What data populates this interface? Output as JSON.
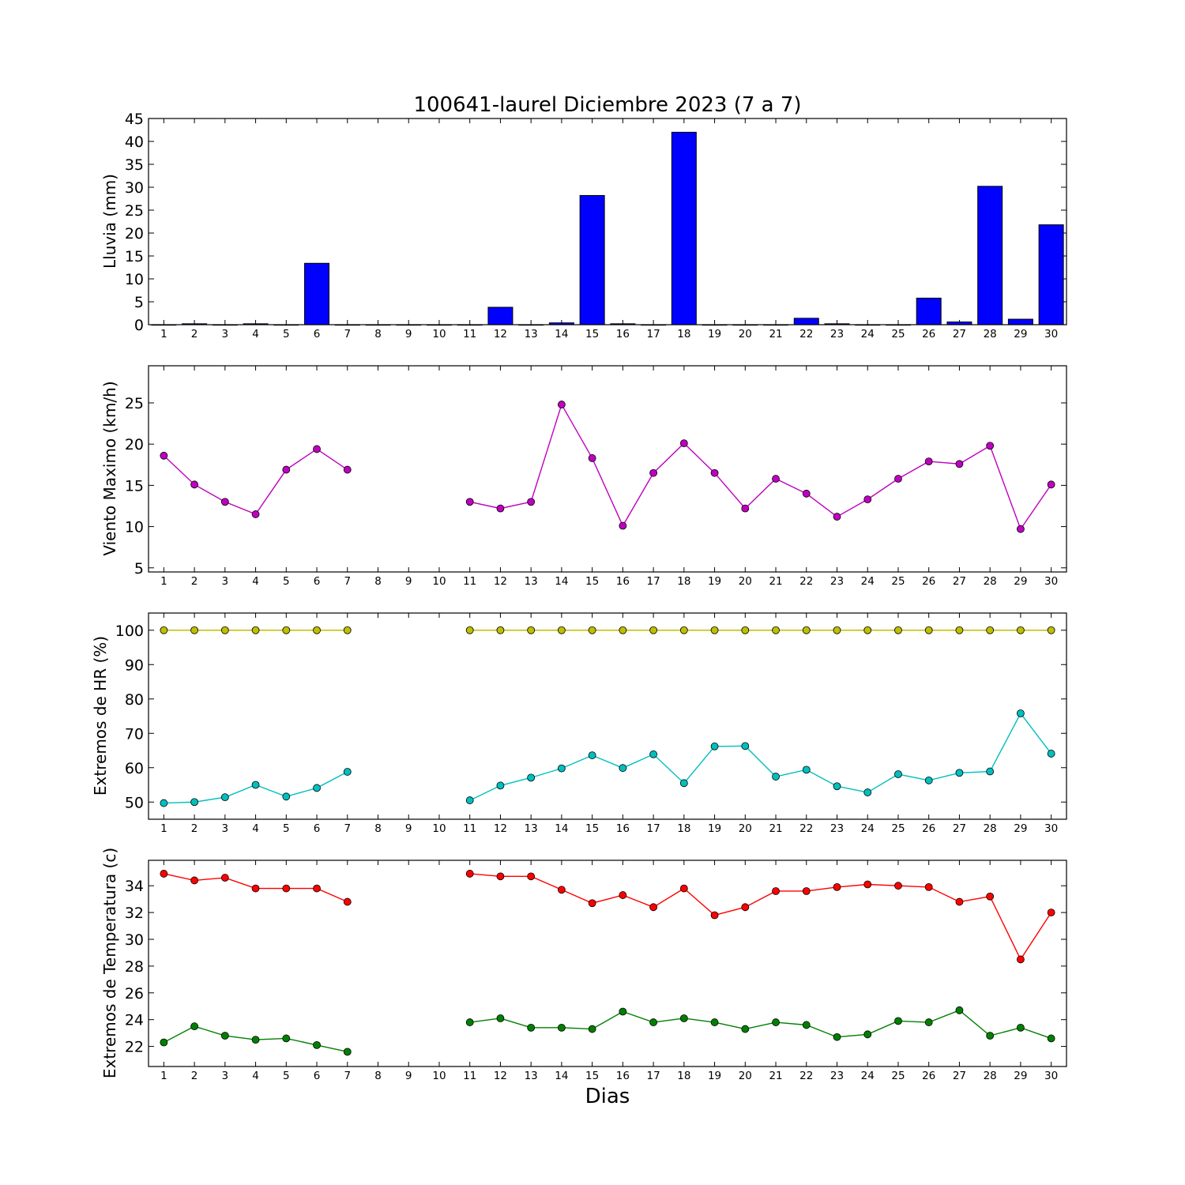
{
  "chart_data": [
    {
      "type": "bar",
      "title": "100641-laurel Diciembre 2023  (7 a 7)",
      "ylabel": "Lluvia (mm)",
      "ylim": [
        0,
        45
      ],
      "yticks": [
        0,
        5,
        10,
        15,
        20,
        25,
        30,
        35,
        40,
        45
      ],
      "categories": [
        1,
        2,
        3,
        4,
        5,
        6,
        7,
        8,
        9,
        10,
        11,
        12,
        13,
        14,
        15,
        16,
        17,
        18,
        19,
        20,
        21,
        22,
        23,
        24,
        25,
        26,
        27,
        28,
        29,
        30
      ],
      "values": [
        0,
        0.2,
        0,
        0.2,
        0,
        13.4,
        0,
        0,
        0,
        0,
        0,
        3.8,
        0,
        0.4,
        28.2,
        0.2,
        0,
        42.0,
        0,
        0,
        0,
        1.4,
        0.2,
        0,
        0,
        5.8,
        0.6,
        30.2,
        1.2,
        21.8
      ],
      "color": "#0000ff"
    },
    {
      "type": "line",
      "ylabel": "Viento Maximo (km/h)",
      "ylim": [
        4.5,
        29.5
      ],
      "yticks": [
        5,
        10,
        15,
        20,
        25
      ],
      "x": [
        1,
        2,
        3,
        4,
        5,
        6,
        7,
        8,
        9,
        10,
        11,
        12,
        13,
        14,
        15,
        16,
        17,
        18,
        19,
        20,
        21,
        22,
        23,
        24,
        25,
        26,
        27,
        28,
        29,
        30
      ],
      "series": [
        {
          "color": "#bf00bf",
          "values": [
            18.6,
            15.1,
            13.0,
            11.5,
            16.9,
            19.4,
            16.9,
            null,
            null,
            null,
            13.0,
            12.2,
            13.0,
            24.8,
            18.3,
            10.1,
            16.5,
            20.1,
            16.5,
            12.2,
            15.8,
            14.0,
            11.2,
            13.3,
            15.8,
            17.9,
            17.6,
            19.8,
            9.7,
            15.1
          ]
        }
      ]
    },
    {
      "type": "line",
      "ylabel": "Extremos de HR (%)",
      "ylim": [
        45,
        105
      ],
      "yticks": [
        50,
        60,
        70,
        80,
        90,
        100
      ],
      "x": [
        1,
        2,
        3,
        4,
        5,
        6,
        7,
        8,
        9,
        10,
        11,
        12,
        13,
        14,
        15,
        16,
        17,
        18,
        19,
        20,
        21,
        22,
        23,
        24,
        25,
        26,
        27,
        28,
        29,
        30
      ],
      "series": [
        {
          "color": "#bfbf00",
          "values": [
            100,
            100,
            100,
            100,
            100,
            100,
            100,
            null,
            null,
            null,
            100,
            100,
            100,
            100,
            100,
            100,
            100,
            100,
            100,
            100,
            100,
            100,
            100,
            100,
            100,
            100,
            100,
            100,
            100,
            100
          ]
        },
        {
          "color": "#00bfbf",
          "values": [
            49.7,
            50.0,
            51.4,
            55.0,
            51.6,
            54.1,
            58.8,
            null,
            null,
            null,
            50.5,
            54.8,
            57.1,
            59.8,
            63.6,
            59.9,
            63.9,
            55.5,
            66.2,
            66.3,
            57.4,
            59.4,
            54.6,
            52.8,
            58.1,
            56.3,
            58.5,
            58.9,
            75.8,
            64.1
          ]
        }
      ]
    },
    {
      "type": "line",
      "ylabel": "Extremos de Temperatura (c)",
      "xlabel": "Dias",
      "ylim": [
        20.5,
        35.9
      ],
      "yticks": [
        22,
        24,
        26,
        28,
        30,
        32,
        34
      ],
      "x": [
        1,
        2,
        3,
        4,
        5,
        6,
        7,
        8,
        9,
        10,
        11,
        12,
        13,
        14,
        15,
        16,
        17,
        18,
        19,
        20,
        21,
        22,
        23,
        24,
        25,
        26,
        27,
        28,
        29,
        30
      ],
      "series": [
        {
          "color": "#ff0000",
          "values": [
            34.9,
            34.4,
            34.6,
            33.8,
            33.8,
            33.8,
            32.8,
            null,
            null,
            null,
            34.9,
            34.7,
            34.7,
            33.7,
            32.7,
            33.3,
            32.4,
            33.8,
            31.8,
            32.4,
            33.6,
            33.6,
            33.9,
            34.1,
            34.0,
            33.9,
            32.8,
            33.2,
            28.5,
            32.0
          ]
        },
        {
          "color": "#008000",
          "values": [
            22.3,
            23.5,
            22.8,
            22.5,
            22.6,
            22.1,
            21.6,
            null,
            null,
            null,
            23.8,
            24.1,
            23.4,
            23.4,
            23.3,
            24.6,
            23.8,
            24.1,
            23.8,
            23.3,
            23.8,
            23.6,
            22.7,
            22.9,
            23.9,
            23.8,
            24.7,
            22.8,
            23.4,
            22.6
          ]
        }
      ]
    }
  ]
}
